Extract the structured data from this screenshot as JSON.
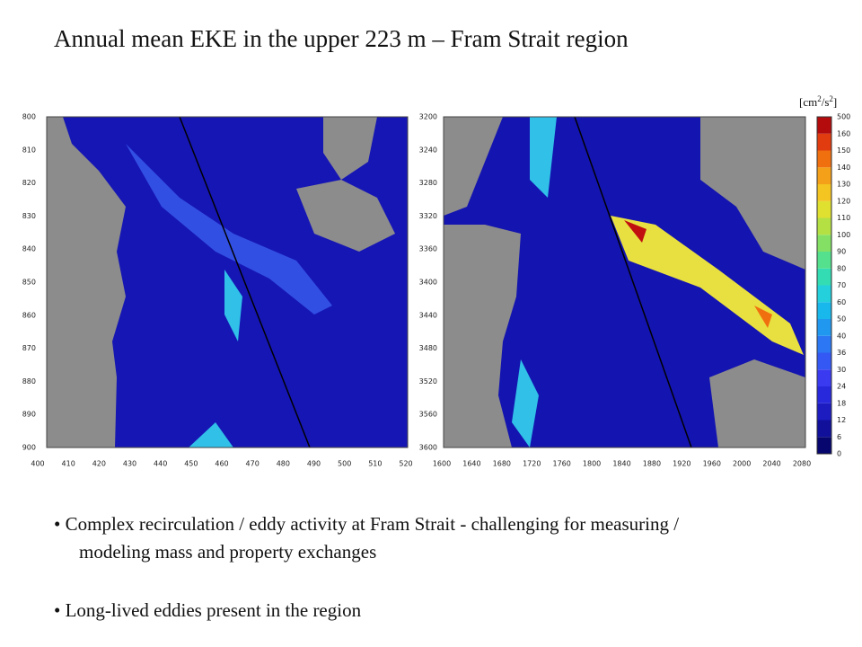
{
  "title": "Annual mean EKE in the upper 223 m – Fram Strait region",
  "unit": [
    "[cm",
    "2",
    "/s",
    "2",
    "]"
  ],
  "left_map": {
    "y_labels": [
      "800",
      "810",
      "820",
      "830",
      "840",
      "850",
      "860",
      "870",
      "880",
      "890",
      "900"
    ],
    "x_labels": [
      "400",
      "410",
      "420",
      "430",
      "440",
      "450",
      "460",
      "470",
      "480",
      "490",
      "500",
      "510",
      "520"
    ]
  },
  "right_map": {
    "y_labels": [
      "3200",
      "3240",
      "3280",
      "3320",
      "3360",
      "3400",
      "3440",
      "3480",
      "3520",
      "3560",
      "3600"
    ],
    "x_labels": [
      "1600",
      "1640",
      "1680",
      "1720",
      "1760",
      "1800",
      "1840",
      "1880",
      "1920",
      "1960",
      "2000",
      "2040",
      "2080"
    ]
  },
  "colorbar": {
    "labels": [
      "0",
      "6",
      "12",
      "18",
      "24",
      "30",
      "36",
      "40",
      "50",
      "60",
      "70",
      "80",
      "90",
      "100",
      "110",
      "120",
      "130",
      "140",
      "150",
      "160",
      "500"
    ],
    "colors": [
      "#06066e",
      "#10109a",
      "#1c1cc0",
      "#2828dc",
      "#3a3af0",
      "#3458f4",
      "#2c78f4",
      "#2098f0",
      "#18b8ec",
      "#24d0dc",
      "#34dcb4",
      "#54e08c",
      "#84e064",
      "#b4e044",
      "#e0e030",
      "#f4c420",
      "#f4a018",
      "#f07010",
      "#e03c10",
      "#b40c0c"
    ]
  },
  "bullets": [
    "• Complex recirculation / eddy activity at Fram Strait - challenging for measuring /",
    "modeling mass and property exchanges",
    "• Long-lived eddies present in the region"
  ]
}
